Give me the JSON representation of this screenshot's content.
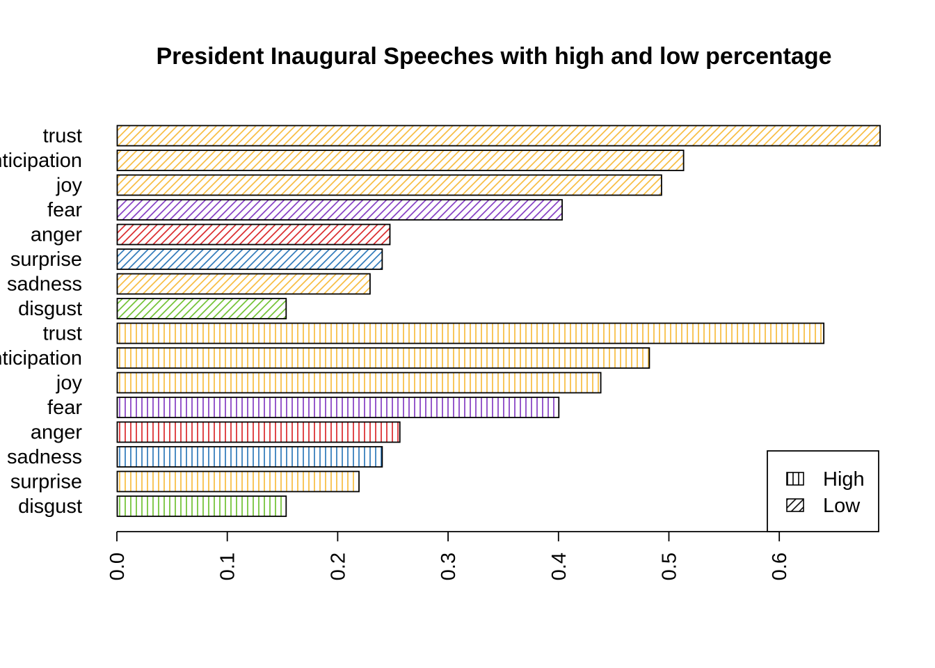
{
  "chart_data": {
    "type": "bar",
    "orientation": "horizontal",
    "title": "President Inaugural Speeches with high and low percentage",
    "xlabel": "",
    "ylabel": "",
    "xlim": [
      0,
      0.69
    ],
    "x_ticks": [
      "0.0",
      "0.1",
      "0.2",
      "0.3",
      "0.4",
      "0.5",
      "0.6"
    ],
    "tick_values": [
      0,
      0.1,
      0.2,
      0.3,
      0.4,
      0.5,
      0.6
    ],
    "grid": false,
    "legend_position": "bottom-right",
    "legend": [
      {
        "label": "High",
        "pattern": "vertical"
      },
      {
        "label": "Low",
        "pattern": "diagonal"
      }
    ],
    "bars": [
      {
        "group": "Low",
        "category": "trust",
        "value": 0.691,
        "color": "#F7B731"
      },
      {
        "group": "Low",
        "category": "anticipation",
        "value": 0.513,
        "color": "#F7B731"
      },
      {
        "group": "Low",
        "category": "joy",
        "value": 0.493,
        "color": "#F7B731"
      },
      {
        "group": "Low",
        "category": "fear",
        "value": 0.403,
        "color": "#7B2FBE"
      },
      {
        "group": "Low",
        "category": "anger",
        "value": 0.247,
        "color": "#D7191C"
      },
      {
        "group": "Low",
        "category": "surprise",
        "value": 0.24,
        "color": "#1F6FB4"
      },
      {
        "group": "Low",
        "category": "sadness",
        "value": 0.229,
        "color": "#F7B731"
      },
      {
        "group": "Low",
        "category": "disgust",
        "value": 0.153,
        "color": "#66BD23"
      },
      {
        "group": "High",
        "category": "trust",
        "value": 0.64,
        "color": "#F7B731"
      },
      {
        "group": "High",
        "category": "anticipation",
        "value": 0.482,
        "color": "#F7B731"
      },
      {
        "group": "High",
        "category": "joy",
        "value": 0.438,
        "color": "#F7B731"
      },
      {
        "group": "High",
        "category": "fear",
        "value": 0.4,
        "color": "#7B2FBE"
      },
      {
        "group": "High",
        "category": "anger",
        "value": 0.256,
        "color": "#D7191C"
      },
      {
        "group": "High",
        "category": "sadness",
        "value": 0.24,
        "color": "#1F6FB4"
      },
      {
        "group": "High",
        "category": "surprise",
        "value": 0.219,
        "color": "#F7B731"
      },
      {
        "group": "High",
        "category": "disgust",
        "value": 0.153,
        "color": "#66BD23"
      }
    ]
  }
}
